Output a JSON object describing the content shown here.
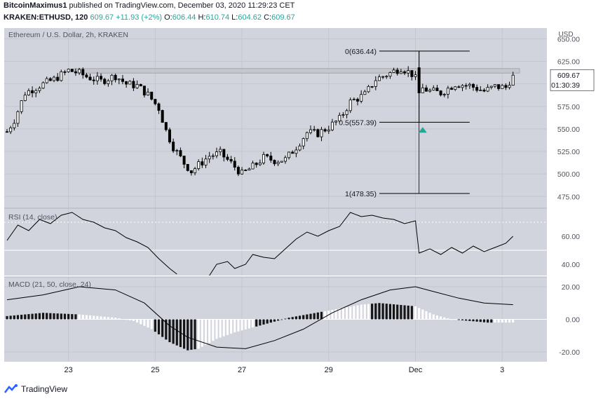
{
  "header": {
    "author": "BitcoinMaximus1",
    "published_text": "published on TradingView.com, December 03, 2020 11:29:23 CET",
    "symbol": "KRAKEN:ETHUSD, 120",
    "last": "609.67",
    "change": "+11.93 (+2%)",
    "o_label": "O:",
    "o_value": "606.44",
    "h_label": "H:",
    "h_value": "610.74",
    "l_label": "L:",
    "l_value": "604.62",
    "c_label": "C:",
    "c_value": "609.67"
  },
  "colors": {
    "pane_bg": "#d1d4dc",
    "candle_down": "#000000",
    "candle_up": "#ffffff",
    "resistance_band": "#c4c6cc",
    "marker": "#26a69a",
    "hist_dark": "#000000",
    "hist_light": "#ffffff"
  },
  "footer": {
    "brand": "TradingView"
  },
  "chart_data": [
    {
      "type": "candlestick",
      "title": "Ethereum / U.S. Dollar, 2h, KRAKEN",
      "y_unit": "USD",
      "ylim": [
        462,
        662
      ],
      "y_ticks": [
        475,
        500,
        525,
        550,
        575,
        600,
        625,
        650
      ],
      "last_price_label": "609.67",
      "countdown_label": "01:30:39",
      "x_ticks": [
        "23",
        "25",
        "27",
        "29",
        "Dec",
        "3"
      ],
      "anchors": [
        {
          "t": 0,
          "close": 547
        },
        {
          "t": 2,
          "close": 560
        },
        {
          "t": 5,
          "close": 590
        },
        {
          "t": 9,
          "close": 598
        },
        {
          "t": 13,
          "close": 605
        },
        {
          "t": 17,
          "close": 615
        },
        {
          "t": 20,
          "close": 612
        },
        {
          "t": 22,
          "close": 608
        },
        {
          "t": 26,
          "close": 603
        },
        {
          "t": 30,
          "close": 609
        },
        {
          "t": 33,
          "close": 600
        },
        {
          "t": 36,
          "close": 598
        },
        {
          "t": 39,
          "close": 588
        },
        {
          "t": 42,
          "close": 573
        },
        {
          "t": 44,
          "close": 548
        },
        {
          "t": 46,
          "close": 530
        },
        {
          "t": 49,
          "close": 512
        },
        {
          "t": 51,
          "close": 503
        },
        {
          "t": 53,
          "close": 510
        },
        {
          "t": 56,
          "close": 520
        },
        {
          "t": 59,
          "close": 523
        },
        {
          "t": 62,
          "close": 512
        },
        {
          "t": 65,
          "close": 500
        },
        {
          "t": 68,
          "close": 508
        },
        {
          "t": 71,
          "close": 518
        },
        {
          "t": 74,
          "close": 515
        },
        {
          "t": 77,
          "close": 516
        },
        {
          "t": 80,
          "close": 530
        },
        {
          "t": 83,
          "close": 546
        },
        {
          "t": 86,
          "close": 545
        },
        {
          "t": 89,
          "close": 552
        },
        {
          "t": 92,
          "close": 561
        },
        {
          "t": 95,
          "close": 580
        },
        {
          "t": 99,
          "close": 588
        },
        {
          "t": 102,
          "close": 605
        },
        {
          "t": 106,
          "close": 612
        },
        {
          "t": 109,
          "close": 618
        },
        {
          "t": 112,
          "close": 611
        },
        {
          "t": 115,
          "close": 595
        },
        {
          "t": 117,
          "close": 592
        },
        {
          "t": 120,
          "close": 590
        },
        {
          "t": 124,
          "close": 600
        },
        {
          "t": 128,
          "close": 598
        },
        {
          "t": 132,
          "close": 592
        },
        {
          "t": 135,
          "close": 597
        },
        {
          "t": 138,
          "close": 596
        },
        {
          "t": 140,
          "close": 609.67
        }
      ],
      "big_drop": {
        "t": 114,
        "open": 618,
        "high": 636.44,
        "low": 557.39,
        "close": 590
      },
      "resistance_zone": [
        612,
        617
      ],
      "fib_levels": [
        {
          "label": "0(636.44)",
          "value": 636.44
        },
        {
          "label": "0.5(557.39)",
          "value": 557.39
        },
        {
          "label": "1(478.35)",
          "value": 478.35
        }
      ],
      "marker": {
        "shape": "triangle-up",
        "t": 115,
        "value": 549
      }
    },
    {
      "type": "line",
      "title": "RSI (14, close)",
      "ylim": [
        32,
        80
      ],
      "y_ticks": [
        40,
        60
      ],
      "hline": 50,
      "dotted_hline": 70,
      "series": [
        {
          "values": [
            {
              "t": 0,
              "y": 57
            },
            {
              "t": 3,
              "y": 68
            },
            {
              "t": 6,
              "y": 64
            },
            {
              "t": 9,
              "y": 72
            },
            {
              "t": 12,
              "y": 69
            },
            {
              "t": 15,
              "y": 75
            },
            {
              "t": 18,
              "y": 77
            },
            {
              "t": 21,
              "y": 72
            },
            {
              "t": 24,
              "y": 70
            },
            {
              "t": 27,
              "y": 66
            },
            {
              "t": 30,
              "y": 64
            },
            {
              "t": 33,
              "y": 59
            },
            {
              "t": 36,
              "y": 56
            },
            {
              "t": 39,
              "y": 52
            },
            {
              "t": 42,
              "y": 44
            },
            {
              "t": 45,
              "y": 37
            },
            {
              "t": 47,
              "y": 33
            }
          ]
        },
        {
          "values": [
            {
              "t": 56,
              "y": 32
            },
            {
              "t": 58,
              "y": 40
            },
            {
              "t": 61,
              "y": 42
            },
            {
              "t": 63,
              "y": 37
            },
            {
              "t": 66,
              "y": 40
            },
            {
              "t": 68,
              "y": 47
            },
            {
              "t": 71,
              "y": 45
            },
            {
              "t": 74,
              "y": 44
            },
            {
              "t": 77,
              "y": 51
            },
            {
              "t": 80,
              "y": 58
            },
            {
              "t": 83,
              "y": 63
            },
            {
              "t": 86,
              "y": 60
            },
            {
              "t": 89,
              "y": 64
            },
            {
              "t": 92,
              "y": 67
            },
            {
              "t": 95,
              "y": 77
            },
            {
              "t": 98,
              "y": 74
            },
            {
              "t": 101,
              "y": 75
            },
            {
              "t": 104,
              "y": 73
            },
            {
              "t": 107,
              "y": 72
            },
            {
              "t": 110,
              "y": 69
            },
            {
              "t": 113,
              "y": 71
            },
            {
              "t": 114,
              "y": 48
            },
            {
              "t": 117,
              "y": 51
            },
            {
              "t": 120,
              "y": 47
            },
            {
              "t": 123,
              "y": 52
            },
            {
              "t": 126,
              "y": 48
            },
            {
              "t": 129,
              "y": 53
            },
            {
              "t": 132,
              "y": 49
            },
            {
              "t": 135,
              "y": 52
            },
            {
              "t": 138,
              "y": 55
            },
            {
              "t": 140,
              "y": 60
            }
          ]
        }
      ]
    },
    {
      "type": "macd",
      "title": "MACD (21, 50, close, 24)",
      "ylim": [
        -26,
        26
      ],
      "y_ticks": [
        -20,
        0,
        20
      ],
      "hist": [
        {
          "t": 0,
          "y": 2
        },
        {
          "t": 10,
          "y": 4
        },
        {
          "t": 20,
          "y": 3
        },
        {
          "t": 30,
          "y": 1
        },
        {
          "t": 35,
          "y": -1
        },
        {
          "t": 40,
          "y": -6
        },
        {
          "t": 45,
          "y": -14
        },
        {
          "t": 50,
          "y": -19
        },
        {
          "t": 53,
          "y": -18
        },
        {
          "t": 58,
          "y": -12
        },
        {
          "t": 63,
          "y": -8
        },
        {
          "t": 68,
          "y": -5
        },
        {
          "t": 73,
          "y": -2
        },
        {
          "t": 78,
          "y": 1
        },
        {
          "t": 83,
          "y": 3
        },
        {
          "t": 88,
          "y": 5
        },
        {
          "t": 93,
          "y": 7
        },
        {
          "t": 98,
          "y": 9
        },
        {
          "t": 103,
          "y": 10
        },
        {
          "t": 108,
          "y": 9
        },
        {
          "t": 113,
          "y": 8
        },
        {
          "t": 118,
          "y": 3
        },
        {
          "t": 123,
          "y": 0
        },
        {
          "t": 128,
          "y": -1
        },
        {
          "t": 133,
          "y": -2
        },
        {
          "t": 140,
          "y": -2
        }
      ],
      "hist_light_ranges": [
        [
          20,
          40
        ],
        [
          53,
          68
        ],
        [
          88,
          100
        ],
        [
          113,
          124
        ],
        [
          135,
          140
        ]
      ],
      "macd_line": [
        {
          "t": 0,
          "y": 12
        },
        {
          "t": 10,
          "y": 15
        },
        {
          "t": 20,
          "y": 20
        },
        {
          "t": 30,
          "y": 18
        },
        {
          "t": 38,
          "y": 10
        },
        {
          "t": 45,
          "y": -4
        },
        {
          "t": 50,
          "y": -11
        },
        {
          "t": 58,
          "y": -17
        },
        {
          "t": 66,
          "y": -18
        },
        {
          "t": 74,
          "y": -13
        },
        {
          "t": 82,
          "y": -6
        },
        {
          "t": 90,
          "y": 4
        },
        {
          "t": 98,
          "y": 12
        },
        {
          "t": 106,
          "y": 18
        },
        {
          "t": 113,
          "y": 20
        },
        {
          "t": 118,
          "y": 17
        },
        {
          "t": 125,
          "y": 13
        },
        {
          "t": 132,
          "y": 10
        },
        {
          "t": 140,
          "y": 9
        }
      ]
    }
  ]
}
